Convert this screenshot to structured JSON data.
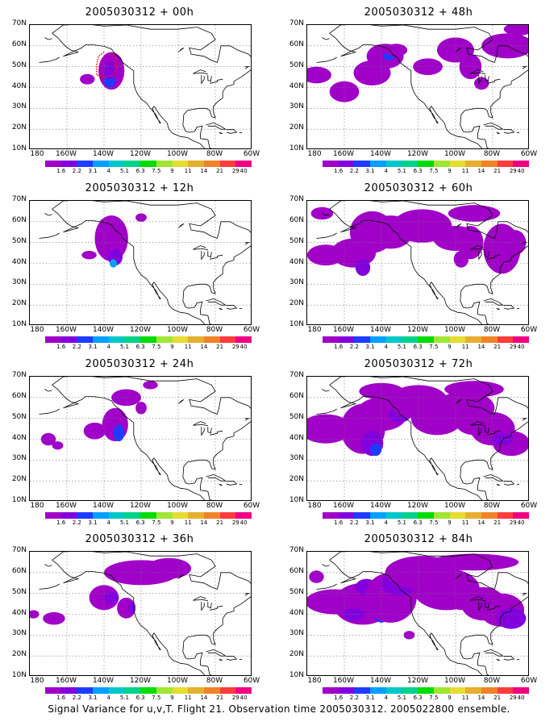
{
  "figure": {
    "caption": "Signal Variance for u,v,T. Flight 21. Observation time 2005030312. 2005022800 ensemble.",
    "lat_labels": [
      "70N",
      "60N",
      "50N",
      "40N",
      "30N",
      "20N",
      "10N"
    ],
    "lon_labels": [
      "180",
      "160W",
      "140W",
      "120W",
      "100W",
      "80W",
      "60W"
    ],
    "colorbar": {
      "levels": [
        "1.6",
        "2.2",
        "3.1",
        "4",
        "5.1",
        "6.3",
        "7.5",
        "9",
        "11",
        "14",
        "21",
        "29",
        "40"
      ],
      "colors": [
        "#a000c8",
        "#8200dc",
        "#1e3cff",
        "#00a0ff",
        "#00c8c8",
        "#00d28c",
        "#00dc00",
        "#a0e632",
        "#e6dc32",
        "#e6af2d",
        "#f08228",
        "#fa3c3c",
        "#f00082"
      ]
    },
    "panels": [
      {
        "title": "2005030312 + 00h",
        "lead_hours": 0
      },
      {
        "title": "2005030312 + 48h",
        "lead_hours": 48
      },
      {
        "title": "2005030312 + 12h",
        "lead_hours": 12
      },
      {
        "title": "2005030312 + 60h",
        "lead_hours": 60
      },
      {
        "title": "2005030312 + 24h",
        "lead_hours": 24
      },
      {
        "title": "2005030312 + 72h",
        "lead_hours": 72
      },
      {
        "title": "2005030312 + 36h",
        "lead_hours": 36
      },
      {
        "title": "2005030312 + 84h",
        "lead_hours": 84
      }
    ]
  }
}
